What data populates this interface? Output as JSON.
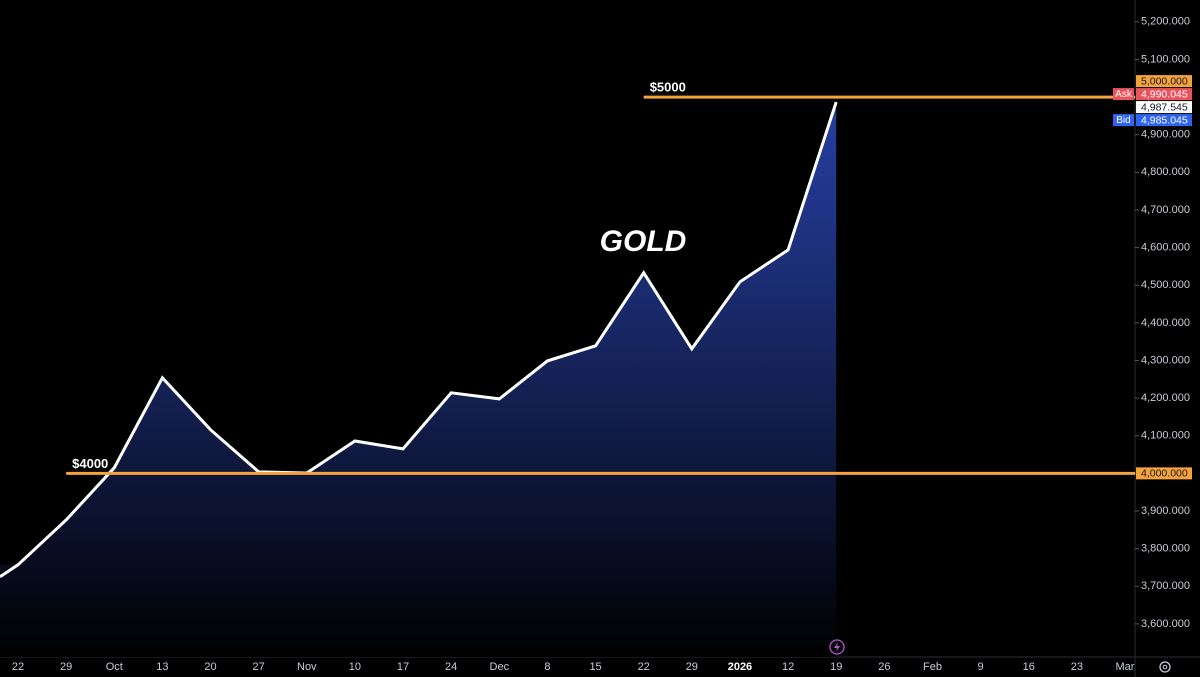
{
  "chart_data": {
    "type": "area",
    "title": "GOLD",
    "categories": [
      "22",
      "29",
      "Oct",
      "13",
      "20",
      "27",
      "Nov",
      "10",
      "17",
      "24",
      "Dec",
      "8",
      "15",
      "22",
      "29",
      "2026",
      "12",
      "19",
      "26",
      "Feb",
      "9",
      "16",
      "23",
      "Mar"
    ],
    "values": [
      3757,
      3876,
      4015,
      4254,
      4116,
      4004,
      4001,
      4086,
      4065,
      4214,
      4198,
      4299,
      4339,
      4533,
      4331,
      4509,
      4594,
      4987,
      null,
      null,
      null,
      null,
      null,
      null
    ],
    "color": "#ffffff",
    "fill_color": "#2a46b4",
    "ylim": [
      3512,
      5258
    ],
    "yticks": [
      {
        "value": 3600,
        "label": "3,600.000"
      },
      {
        "value": 3700,
        "label": "3,700.000"
      },
      {
        "value": 3800,
        "label": "3,800.000"
      },
      {
        "value": 3900,
        "label": "3,900.000"
      },
      {
        "value": 4000,
        "label": "4,000.000"
      },
      {
        "value": 4100,
        "label": "4,100.000"
      },
      {
        "value": 4200,
        "label": "4,200.000"
      },
      {
        "value": 4300,
        "label": "4,300.000"
      },
      {
        "value": 4400,
        "label": "4,400.000"
      },
      {
        "value": 4500,
        "label": "4,500.000"
      },
      {
        "value": 4600,
        "label": "4,600.000"
      },
      {
        "value": 4700,
        "label": "4,700.000"
      },
      {
        "value": 4800,
        "label": "4,800.000"
      },
      {
        "value": 4900,
        "label": "4,900.000"
      },
      {
        "value": 5000,
        "label": "5,000.000"
      },
      {
        "value": 5100,
        "label": "5,100.000"
      },
      {
        "value": 5200,
        "label": "5,200.000"
      }
    ],
    "hlines": [
      {
        "value": 5000,
        "label": "$5000",
        "color": "#f5a33a"
      },
      {
        "value": 4000,
        "label": "$4000",
        "color": "#f5a33a"
      }
    ],
    "price_labels": [
      {
        "value": 5000,
        "label": "5,000.000",
        "color": "#f5a33a"
      },
      {
        "value": 4990.045,
        "label": "4,990.045",
        "tag": "Ask",
        "color": "#e9545c"
      },
      {
        "value": 4987.545,
        "label": "4,987.545",
        "color": "#ffffff"
      },
      {
        "value": 4985.045,
        "label": "4,985.045",
        "tag": "Bid",
        "color": "#2f64f0"
      },
      {
        "value": 4000,
        "label": "4,000.000",
        "color": "#f5a33a"
      }
    ]
  }
}
